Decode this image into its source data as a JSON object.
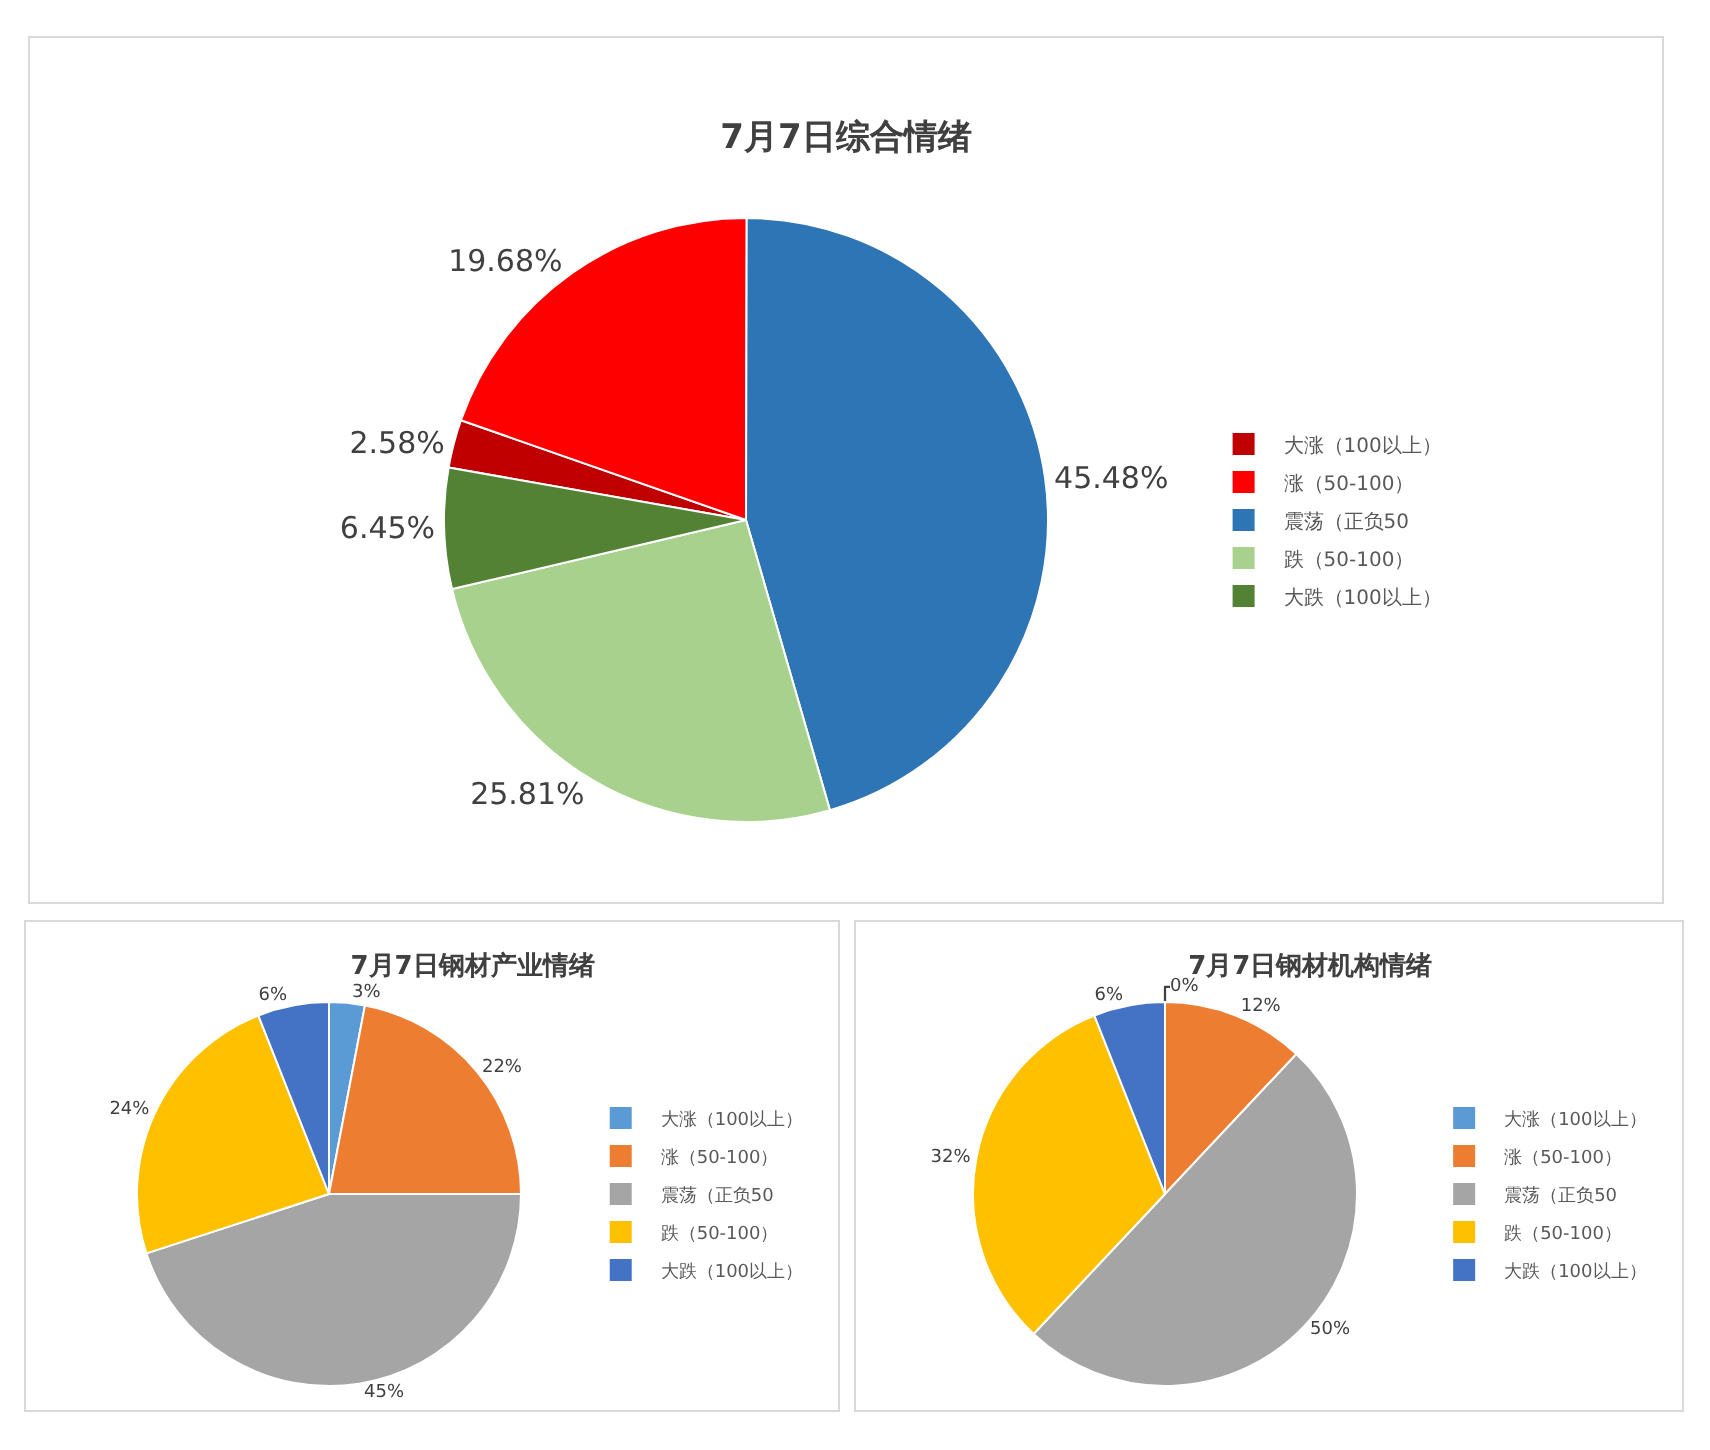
{
  "chart_data": [
    {
      "type": "pie",
      "title": "7月7日综合情绪",
      "categories": [
        "大涨（100以上）",
        "涨（50-100）",
        "震荡（正负50",
        "跌（50-100）",
        "大跌（100以上）"
      ],
      "values": [
        2.58,
        19.68,
        45.48,
        25.81,
        6.45
      ],
      "value_labels": [
        "2.58%",
        "19.68%",
        "45.48%",
        "25.81%",
        "6.45%"
      ],
      "colors": [
        "#c00000",
        "#ff0000",
        "#2e75b6",
        "#a9d18e",
        "#548235"
      ],
      "legend": "right"
    },
    {
      "type": "pie",
      "title": "7月7日钢材产业情绪",
      "categories": [
        "大涨（100以上）",
        "涨（50-100）",
        "震荡（正负50",
        "跌（50-100）",
        "大跌（100以上）"
      ],
      "values": [
        3,
        22,
        45,
        24,
        6
      ],
      "value_labels": [
        "3%",
        "22%",
        "45%",
        "24%",
        "6%"
      ],
      "colors": [
        "#5b9bd5",
        "#ed7d31",
        "#a5a5a5",
        "#ffc000",
        "#4472c4"
      ],
      "legend": "right"
    },
    {
      "type": "pie",
      "title": "7月7日钢材机构情绪",
      "categories": [
        "大涨（100以上）",
        "涨（50-100）",
        "震荡（正负50",
        "跌（50-100）",
        "大跌（100以上）"
      ],
      "values": [
        0,
        12,
        50,
        32,
        6
      ],
      "value_labels": [
        "0%",
        "12%",
        "50%",
        "32%",
        "6%"
      ],
      "colors": [
        "#5b9bd5",
        "#ed7d31",
        "#a5a5a5",
        "#ffc000",
        "#4472c4"
      ],
      "legend": "right"
    }
  ]
}
